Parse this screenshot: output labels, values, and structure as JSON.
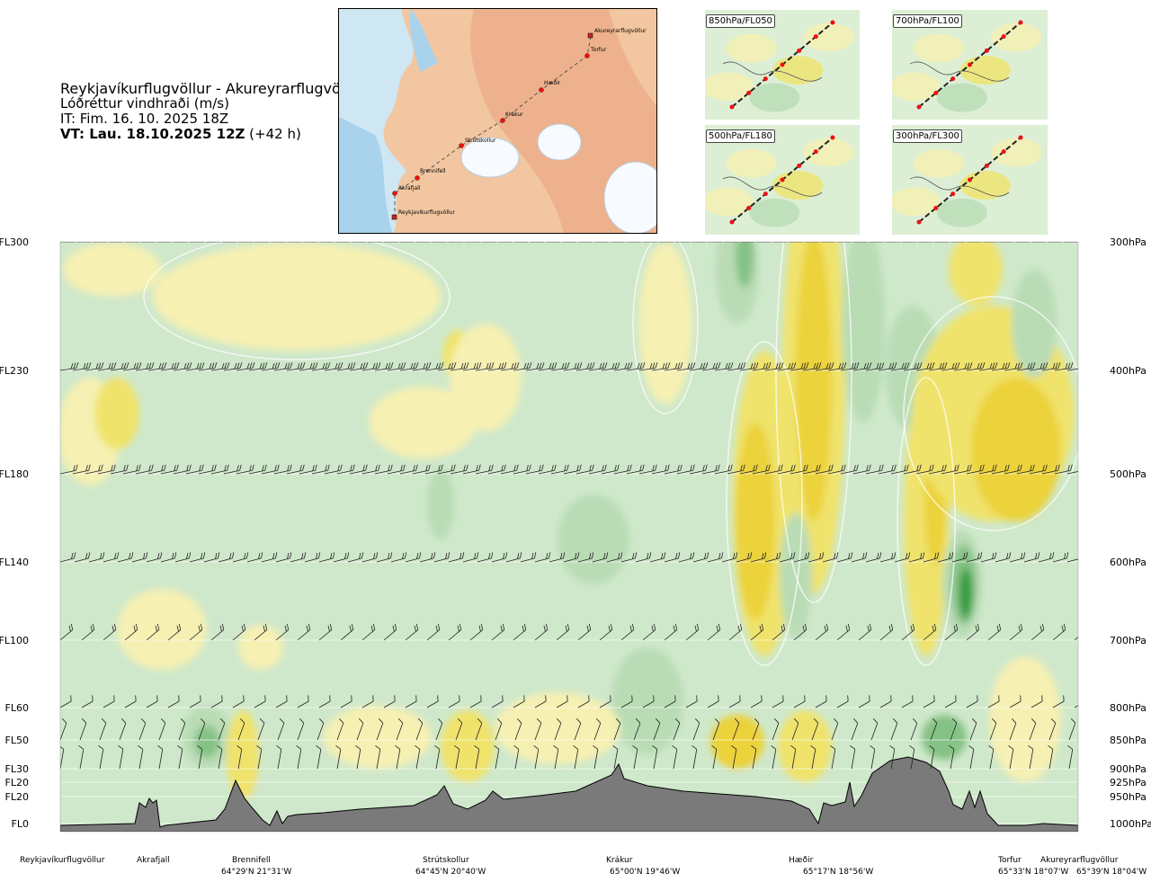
{
  "title": {
    "route": "Reykjavíkurflugvöllur - Akureyrarflugvöllur",
    "variable": "Lóðréttur vindhraði (m/s)",
    "init_time": "IT: Fim. 16. 10. 2025 18Z",
    "valid_time": "VT: Lau. 18.10.2025 12Z",
    "lead": "(+42 h)"
  },
  "map": {
    "places": [
      "Akureyrarflugvöllur",
      "Torfur",
      "Hæðir",
      "Krákur",
      "Strútskollur",
      "Brennifell",
      "Akrafjall",
      "Reykjavíkurflugvöllur"
    ]
  },
  "minimaps": [
    "850hPa/FL050",
    "700hPa/FL100",
    "500hPa/FL180",
    "300hPa/FL300"
  ],
  "colors": {
    "green_light": "#dcefd5",
    "green_mid": "#b9dcb5",
    "green_dark": "#85c285",
    "green_deep": "#2e9b3e",
    "yellow_light": "#f6f0b2",
    "yellow_mid": "#f0e36c",
    "yellow_dark": "#ecd23a",
    "terrain": "#7a7a7a"
  },
  "chart_data": {
    "type": "heatmap",
    "title": "Lóðréttur vindhraði (m/s)",
    "flight_levels": [
      "FL300",
      "FL230",
      "FL180",
      "FL140",
      "FL100",
      "FL60",
      "FL50",
      "FL30",
      "FL20",
      "FL20",
      "FL0"
    ],
    "pressure_levels": [
      "300hPa",
      "400hPa",
      "500hPa",
      "600hPa",
      "700hPa",
      "800hPa",
      "850hPa",
      "900hPa",
      "925hPa",
      "950hPa",
      "1000hPa"
    ],
    "pressure_values": [
      300,
      400,
      500,
      600,
      700,
      800,
      850,
      900,
      925,
      950,
      1000
    ],
    "ylim": [
      1000,
      300
    ],
    "route_waypoints": [
      {
        "name": "Reykjavíkurflugvöllur",
        "coord": ""
      },
      {
        "name": "Akrafjall",
        "coord": ""
      },
      {
        "name": "Brennifell",
        "coord": "64°29'N 21°31'W"
      },
      {
        "name": "Strútskollur",
        "coord": "64°45'N 20°40'W"
      },
      {
        "name": "Krákur",
        "coord": "65°00'N 19°46'W"
      },
      {
        "name": "Hæðir",
        "coord": "65°17'N 18°56'W"
      },
      {
        "name": "Torfur",
        "coord": "65°33'N 18°07'W"
      },
      {
        "name": "Akureyrarflugvöllur",
        "coord": "65°39'N 18°04'W"
      }
    ],
    "legend": "none"
  }
}
